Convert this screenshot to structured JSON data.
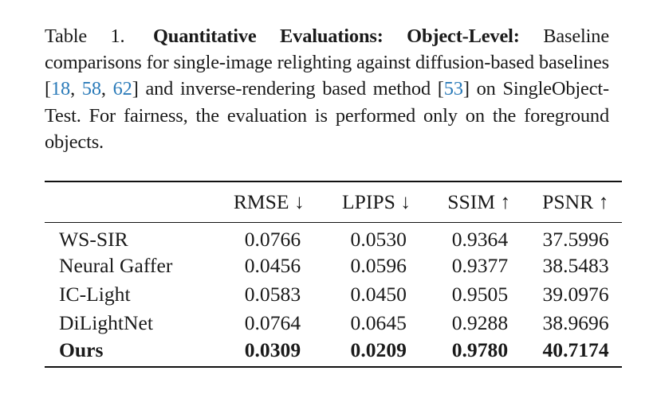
{
  "caption": {
    "label": "Table 1.",
    "title": "Quantitative Evaluations: Object-Level:",
    "text_1": "Baseline comparisons for single-image relighting against diffusion-based baselines [",
    "cite_1": "18",
    "sep_1": ", ",
    "cite_2": "58",
    "sep_2": ", ",
    "cite_3": "62",
    "text_2": "] and inverse-rendering based method [",
    "cite_4": "53",
    "text_3": "] on SingleObject-Test. For fairness, the evaluation is performed only on the foreground objects.",
    "cite_color": "#2b7bb9"
  },
  "table": {
    "headers": [
      "",
      "RMSE ↓",
      "LPIPS ↓",
      "SSIM ↑",
      "PSNR ↑"
    ],
    "rows": [
      {
        "method": "WS-SIR",
        "values": [
          "0.0766",
          "0.0530",
          "0.9364",
          "37.5996"
        ]
      },
      {
        "method": "Neural Gaffer",
        "values": [
          "0.0456",
          "0.0596",
          "0.9377",
          "38.5483"
        ]
      },
      {
        "method": "IC-Light",
        "values": [
          "0.0583",
          "0.0450",
          "0.9505",
          "39.0976"
        ]
      },
      {
        "method": "DiLightNet",
        "values": [
          "0.0764",
          "0.0645",
          "0.9288",
          "38.9696"
        ]
      },
      {
        "method": "Ours",
        "values": [
          "0.0309",
          "0.0209",
          "0.9780",
          "40.7174"
        ],
        "bold": true
      }
    ]
  }
}
